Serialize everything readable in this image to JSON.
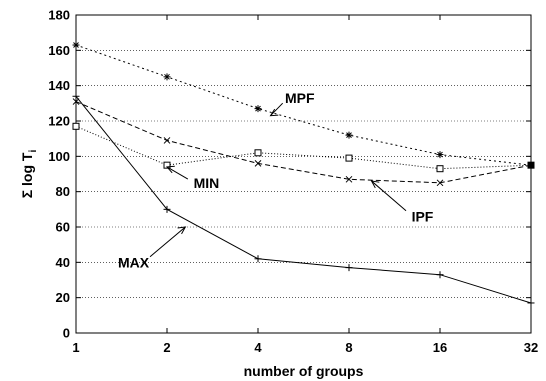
{
  "chart_data": {
    "type": "line",
    "title": "",
    "xlabel": "number of groups",
    "ylabel": "Σ log T",
    "ylabel_sub": "i",
    "x": [
      1,
      2,
      4,
      8,
      16,
      32
    ],
    "x_scale": "log2",
    "xlim": [
      1,
      32
    ],
    "ylim": [
      0,
      180
    ],
    "yticks": [
      0,
      20,
      40,
      60,
      80,
      100,
      120,
      140,
      160,
      180
    ],
    "grid": "horizontal dotted",
    "series": [
      {
        "name": "MPF",
        "style": "dotted",
        "marker": "asterisk",
        "values": [
          163,
          145,
          127,
          112,
          101,
          95
        ]
      },
      {
        "name": "MIN",
        "style": "fine-dotted",
        "marker": "square",
        "values": [
          117,
          95,
          102,
          99,
          93,
          95
        ]
      },
      {
        "name": "IPF",
        "style": "dashed",
        "marker": "x",
        "values": [
          131,
          109,
          96,
          87,
          85,
          95
        ]
      },
      {
        "name": "MAX",
        "style": "solid",
        "marker": "plus",
        "values": [
          134,
          70,
          42,
          37,
          33,
          17
        ]
      }
    ],
    "annotations": [
      {
        "text": "MPF",
        "x": 5.5,
        "y": 133,
        "target_x": 4.4,
        "target_y": 123
      },
      {
        "text": "MIN",
        "x": 2.7,
        "y": 85,
        "target_x": 2.0,
        "target_y": 94
      },
      {
        "text": "IPF",
        "x": 14,
        "y": 66,
        "target_x": 9.5,
        "target_y": 86
      },
      {
        "text": "MAX",
        "x": 1.55,
        "y": 40,
        "target_x": 2.3,
        "target_y": 60
      }
    ]
  }
}
